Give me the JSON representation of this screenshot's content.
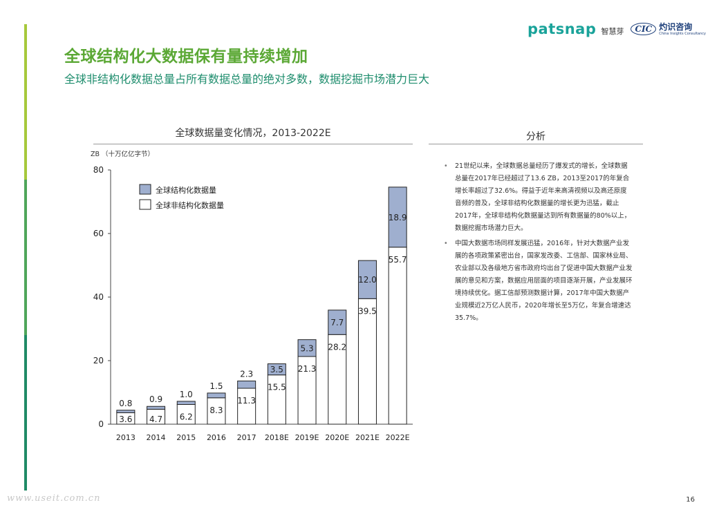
{
  "header": {
    "brand_name": "patsnap",
    "brand_cn": "智慧芽",
    "partner_mark": "CIC",
    "partner_cn": "灼识咨询",
    "partner_en": "China Insights Consultancy",
    "accent_color": "#5ba835",
    "brand_color": "#1aa39a"
  },
  "title": "全球结构化大数据保有量持续增加",
  "subtitle": "全球非结构化数据总量占所有数据总量的绝对多数，数据挖掘市场潜力巨大",
  "chart_data": {
    "type": "bar",
    "stacked": true,
    "title": "全球数据量变化情况，2013-2022E",
    "ylabel": "ZB （十万亿亿字节）",
    "ylim": [
      0,
      80
    ],
    "yticks": [
      0,
      20,
      40,
      60,
      80
    ],
    "grid": false,
    "legend_position": "top-left",
    "categories": [
      "2013",
      "2014",
      "2015",
      "2016",
      "2017",
      "2018E",
      "2019E",
      "2020E",
      "2021E",
      "2022E"
    ],
    "series": [
      {
        "name": "全球非结构化数据量",
        "color": "#ffffff",
        "values": [
          3.6,
          4.7,
          6.2,
          8.3,
          11.3,
          15.5,
          21.3,
          28.2,
          39.5,
          55.7
        ]
      },
      {
        "name": "全球结构化数据量",
        "color": "#9fafcf",
        "values": [
          0.8,
          0.9,
          1.0,
          1.5,
          2.3,
          3.5,
          5.3,
          7.7,
          12.0,
          18.9
        ]
      }
    ],
    "data_labels": {
      "unstructured": [
        "3.6",
        "4.7",
        "6.2",
        "8.3",
        "11.3",
        "15.5",
        "21.3",
        "28.2",
        "39.5",
        "55.7"
      ],
      "structured": [
        "0.8",
        "0.9",
        "1.0",
        "1.5",
        "2.3",
        "3.5",
        "5.3",
        "7.7",
        "12.0",
        "18.9"
      ]
    }
  },
  "analysis": {
    "title": "分析",
    "bullets": [
      "21世纪以来，全球数据总量经历了爆发式的增长，全球数据总量在2017年已经超过了13.6 ZB，2013至2017的年复合增长率超过了32.6%。得益于近年来高清视频以及高还原度音频的普及，全球非结构化数据量的增长更为迅猛，截止2017年，全球非结构化数据量达到所有数据量的80%以上，数据挖掘市场潜力巨大。",
      "中国大数据市场同样发展迅猛，2016年，针对大数据产业发展的各项政策紧密出台，国家发改委、工信部、国家林业局、农业部以及各级地方省市政府均出台了促进中国大数据产业发展的意见和方案，数据应用层面的项目逐渐开展，产业发展环境持续优化。据工信部预测数据计算，2017年中国大数据产业规模近2万亿人民币，2020年增长至5万亿，年复合增速达35.7%。"
    ]
  },
  "footer": {
    "page_number": "16",
    "watermark": "www.useit.com.cn"
  }
}
